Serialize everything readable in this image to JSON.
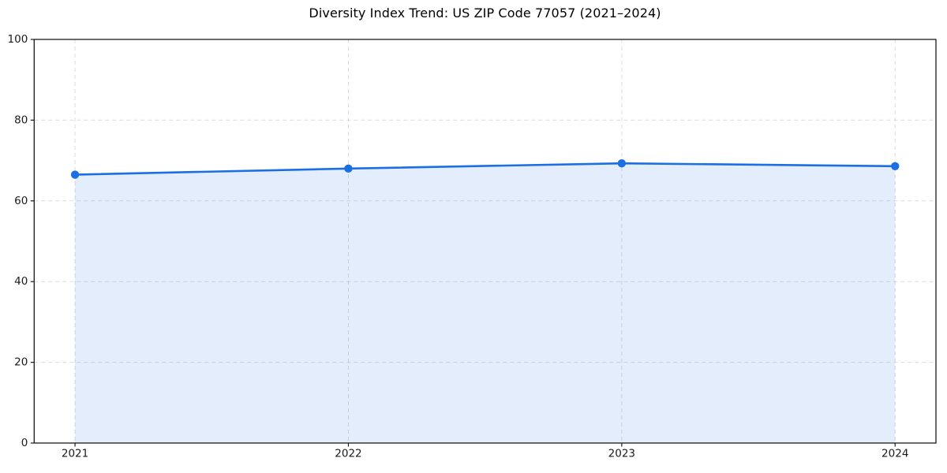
{
  "figure": {
    "background": "#ffffff"
  },
  "chart_data": {
    "type": "area",
    "title": "Diversity Index Trend: US ZIP Code 77057 (2021–2024)",
    "categories": [
      "2021",
      "2022",
      "2023",
      "2024"
    ],
    "values": [
      66.5,
      68.0,
      69.3,
      68.6
    ],
    "xlabel": "",
    "ylabel": "",
    "ylim": [
      0,
      100
    ],
    "yticks": [
      0,
      20,
      40,
      60,
      80,
      100
    ],
    "grid": true,
    "grid_style": "dashed",
    "legend": false,
    "marker": "circle",
    "line_color": "#1b6fe3",
    "marker_color": "#1b6fe3",
    "fill_color": "rgba(27,111,227,0.12)",
    "grid_color": "#dcdcdc",
    "spine_color": "#1a1a1a",
    "tick_label_color": "#1a1a1a"
  }
}
